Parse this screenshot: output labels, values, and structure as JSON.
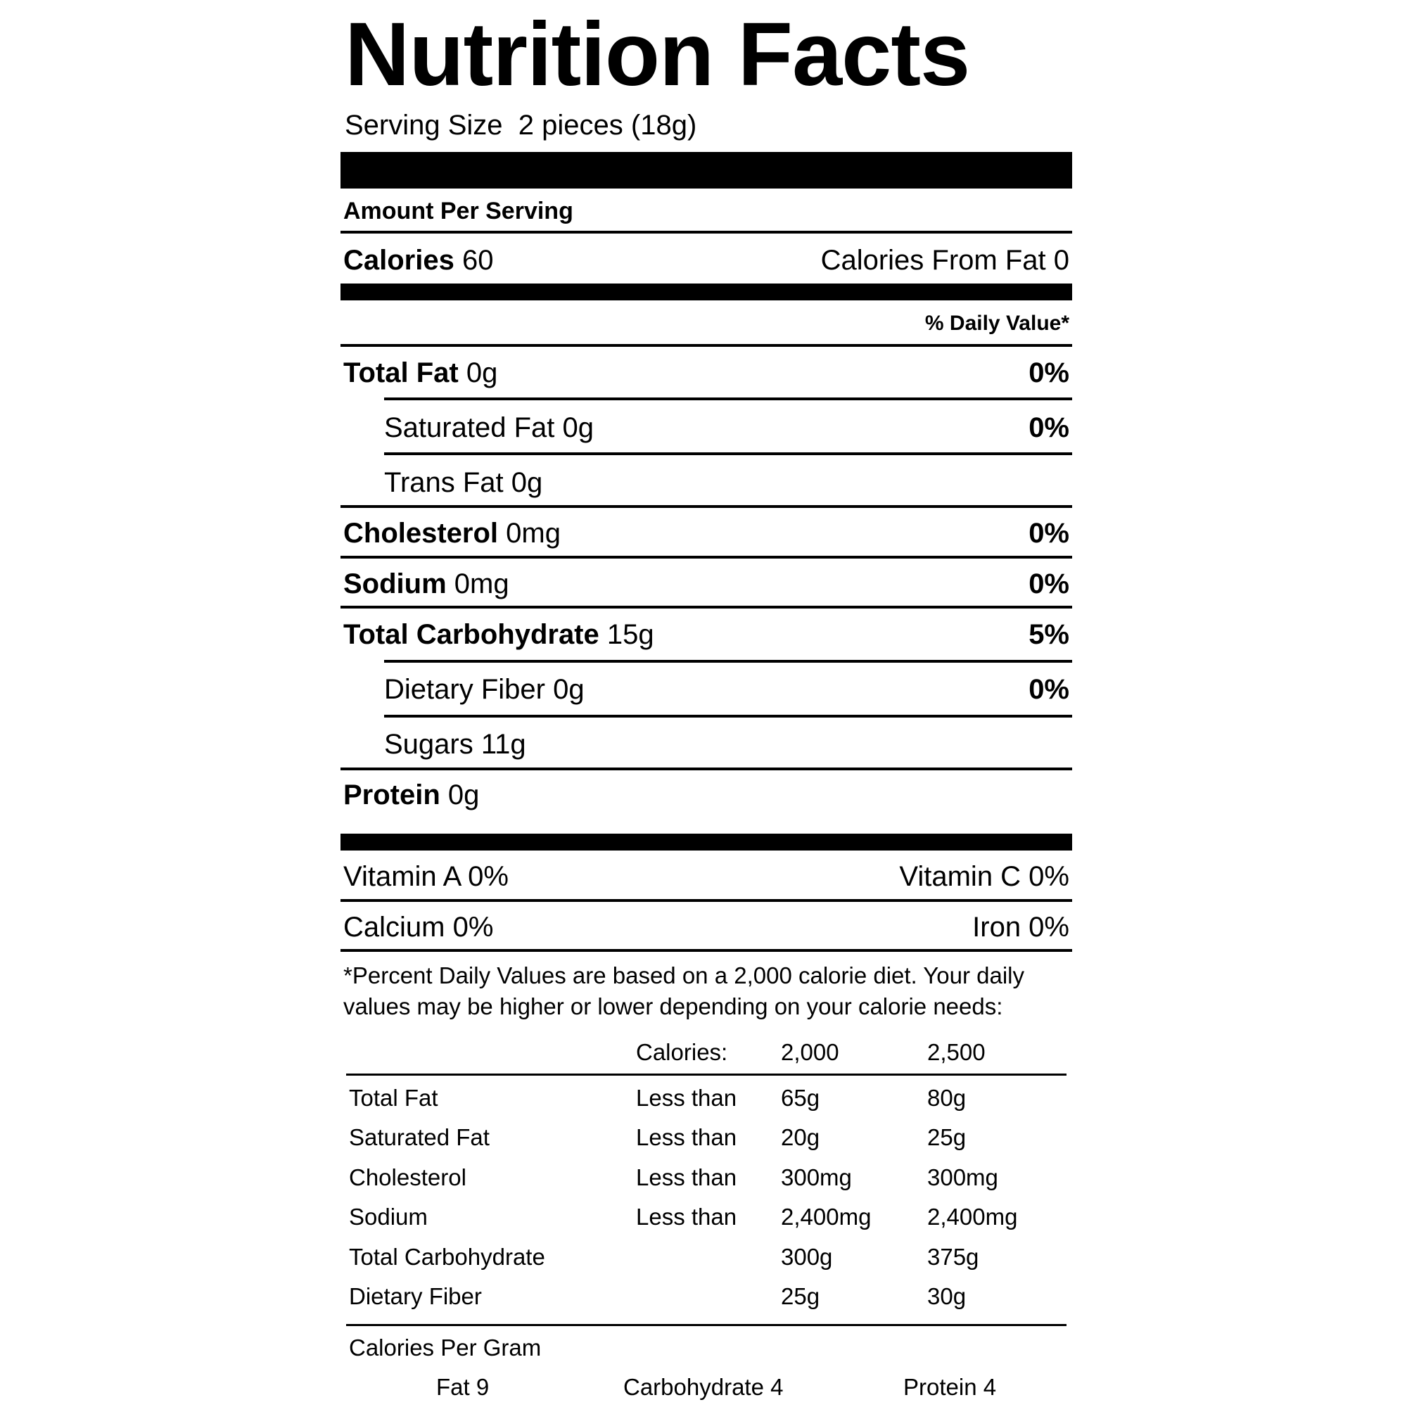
{
  "title": "Nutrition Facts",
  "serving": {
    "label": "Serving Size",
    "value": "2 pieces (18g)"
  },
  "amount_per_serving": "Amount Per Serving",
  "calories": {
    "label": "Calories",
    "value": "60",
    "from_fat_label": "Calories From Fat",
    "from_fat_value": "0"
  },
  "daily_value_header": "% Daily Value*",
  "nutrients": [
    {
      "label": "Total Fat",
      "amount": "0g",
      "dv": "0%"
    },
    {
      "label": "Saturated Fat",
      "amount": "0g",
      "dv": "0%"
    },
    {
      "label": "Trans Fat",
      "amount": "0g",
      "dv": ""
    },
    {
      "label": "Cholesterol",
      "amount": "0mg",
      "dv": "0%"
    },
    {
      "label": "Sodium",
      "amount": "0mg",
      "dv": "0%"
    },
    {
      "label": "Total Carbohydrate",
      "amount": "15g",
      "dv": "5%"
    },
    {
      "label": "Dietary Fiber",
      "amount": "0g",
      "dv": "0%"
    },
    {
      "label": "Sugars",
      "amount": "11g",
      "dv": ""
    },
    {
      "label": "Protein",
      "amount": "0g",
      "dv": ""
    }
  ],
  "vitamins": {
    "vitamin_a": "Vitamin A 0%",
    "vitamin_c": "Vitamin C 0%",
    "calcium": "Calcium 0%",
    "iron": "Iron 0%"
  },
  "footnote": {
    "line1": "*Percent Daily Values are based on a 2,000 calorie diet. Your daily",
    "line2": "values may be higher or lower depending on your calorie needs:"
  },
  "reference_table": {
    "header": {
      "calories_label": "Calories:",
      "col1": "2,000",
      "col2": "2,500"
    },
    "rows": [
      {
        "name": "Total Fat",
        "qualifier": "Less than",
        "col1": "65g",
        "col2": "80g"
      },
      {
        "name": "Saturated Fat",
        "qualifier": "Less than",
        "col1": "20g",
        "col2": "25g"
      },
      {
        "name": "Cholesterol",
        "qualifier": "Less than",
        "col1": "300mg",
        "col2": "300mg"
      },
      {
        "name": "Sodium",
        "qualifier": "Less than",
        "col1": "2,400mg",
        "col2": "2,400mg"
      },
      {
        "name": "Total Carbohydrate",
        "qualifier": "",
        "col1": "300g",
        "col2": "375g"
      },
      {
        "name": "Dietary Fiber",
        "qualifier": "",
        "col1": "25g",
        "col2": "30g"
      }
    ]
  },
  "calories_per_gram": {
    "label": "Calories Per Gram",
    "fat": "Fat 9",
    "carbohydrate": "Carbohydrate 4",
    "protein": "Protein 4"
  }
}
